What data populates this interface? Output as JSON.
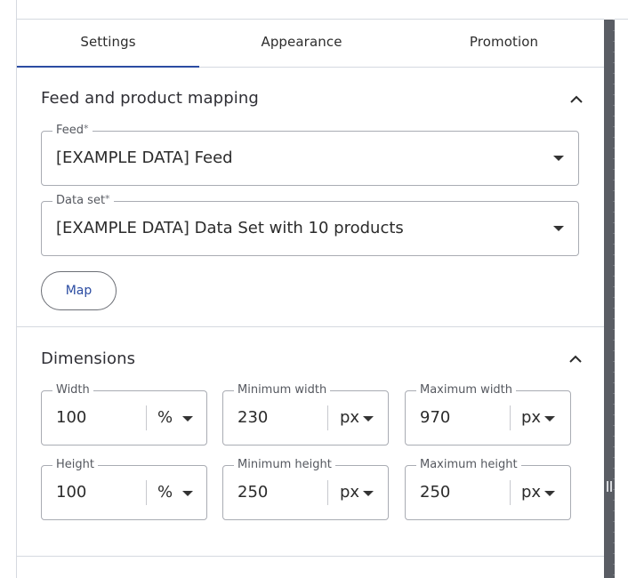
{
  "tabs": [
    {
      "label": "Settings",
      "active": true
    },
    {
      "label": "Appearance",
      "active": false
    },
    {
      "label": "Promotion",
      "active": false
    }
  ],
  "feed_section": {
    "title": "Feed and product mapping",
    "feed": {
      "label": "Feed",
      "required_mark": "*",
      "value": "[EXAMPLE DATA] Feed"
    },
    "data_set": {
      "label": "Data set",
      "required_mark": "*",
      "value": "[EXAMPLE DATA] Data Set with 10 products"
    },
    "map_button": "Map"
  },
  "dimensions_section": {
    "title": "Dimensions",
    "fields": [
      {
        "label": "Width",
        "value": "100",
        "unit": "%"
      },
      {
        "label": "Minimum width",
        "value": "230",
        "unit": "px"
      },
      {
        "label": "Maximum width",
        "value": "970",
        "unit": "px"
      },
      {
        "label": "Height",
        "value": "100",
        "unit": "%"
      },
      {
        "label": "Minimum height",
        "value": "250",
        "unit": "px"
      },
      {
        "label": "Maximum height",
        "value": "250",
        "unit": "px"
      }
    ]
  },
  "colors": {
    "accent": "#2b4ca2",
    "scrollbar": "#5a5d64",
    "border": "#d5d9e0"
  }
}
